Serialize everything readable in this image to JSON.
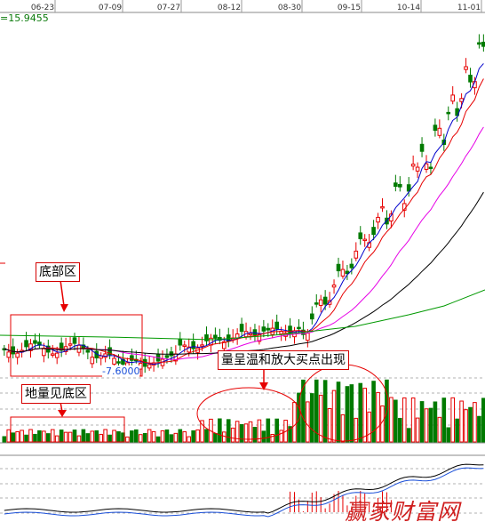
{
  "chart_data": {
    "type": "candlestick",
    "x_ticks": [
      "06-23",
      "07-09",
      "07-27",
      "08-12",
      "08-30",
      "09-15",
      "10-14",
      "11-01"
    ],
    "high_label": "=15.9455",
    "low_label": "-7.6000",
    "colors": {
      "up": "#e60000",
      "down": "#007a00",
      "ma_short": "#0000cc",
      "ma_mid": "#e60000",
      "ma_long": "#e600e6",
      "ma_longer": "#000000",
      "ma_longest": "#009900",
      "grid": "#b0b0b0",
      "annotation": "#e60000"
    },
    "annotations": {
      "bottom_zone": "底部区",
      "low_volume_bottom": "地量见底区",
      "volume_buy_signal": "量呈温和放大买点出现"
    },
    "watermark": "赢家财富网"
  }
}
